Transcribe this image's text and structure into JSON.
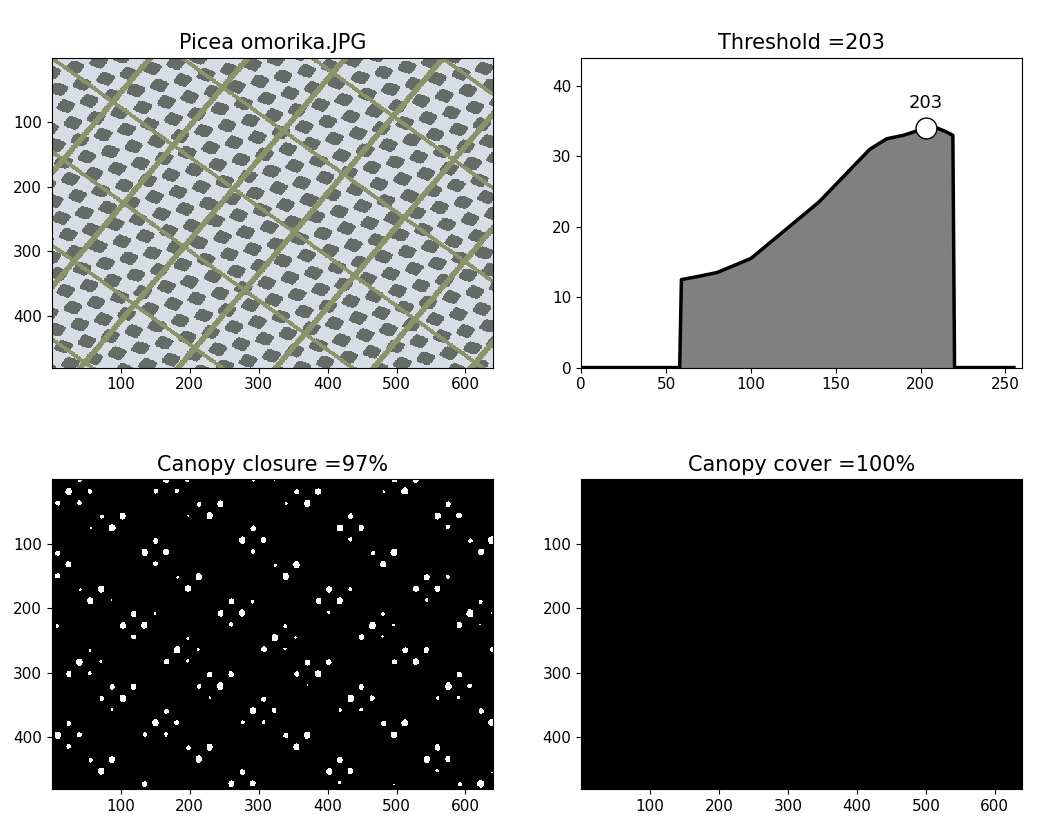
{
  "chart_data": [
    {
      "type": "image",
      "title": "Picea omorika.JPG",
      "xlim": [
        0,
        640
      ],
      "ylim": [
        480,
        0
      ],
      "xticks": [
        100,
        200,
        300,
        400,
        500,
        600
      ],
      "yticks": [
        100,
        200,
        300,
        400
      ]
    },
    {
      "type": "area",
      "title": "Threshold =203",
      "x": [
        0,
        58,
        59,
        70,
        80,
        90,
        100,
        110,
        120,
        130,
        140,
        150,
        160,
        170,
        180,
        190,
        200,
        203,
        210,
        215,
        219,
        220,
        255
      ],
      "values": [
        0,
        0,
        12.5,
        13,
        13.5,
        14.5,
        15.5,
        17.5,
        19.5,
        21.5,
        23.5,
        26,
        28.5,
        31,
        32.5,
        33,
        33.8,
        34,
        34,
        33.5,
        33,
        0,
        0
      ],
      "color": "#808080",
      "xlim": [
        0,
        260
      ],
      "ylim": [
        0,
        44
      ],
      "xticks": [
        0,
        50,
        100,
        150,
        200,
        250
      ],
      "yticks": [
        0,
        10,
        20,
        30,
        40
      ],
      "annotations": [
        {
          "text": "203",
          "x": 203,
          "y": 34
        }
      ]
    },
    {
      "type": "image",
      "title": "Canopy closure =97%",
      "xlim": [
        0,
        640
      ],
      "ylim": [
        480,
        0
      ],
      "xticks": [
        100,
        200,
        300,
        400,
        500,
        600
      ],
      "yticks": [
        100,
        200,
        300,
        400
      ]
    },
    {
      "type": "image",
      "title": "Canopy cover =100%",
      "xlim": [
        0,
        640
      ],
      "ylim": [
        480,
        0
      ],
      "xticks": [
        100,
        200,
        300,
        400,
        500,
        600
      ],
      "yticks": [
        100,
        200,
        300,
        400
      ]
    }
  ]
}
